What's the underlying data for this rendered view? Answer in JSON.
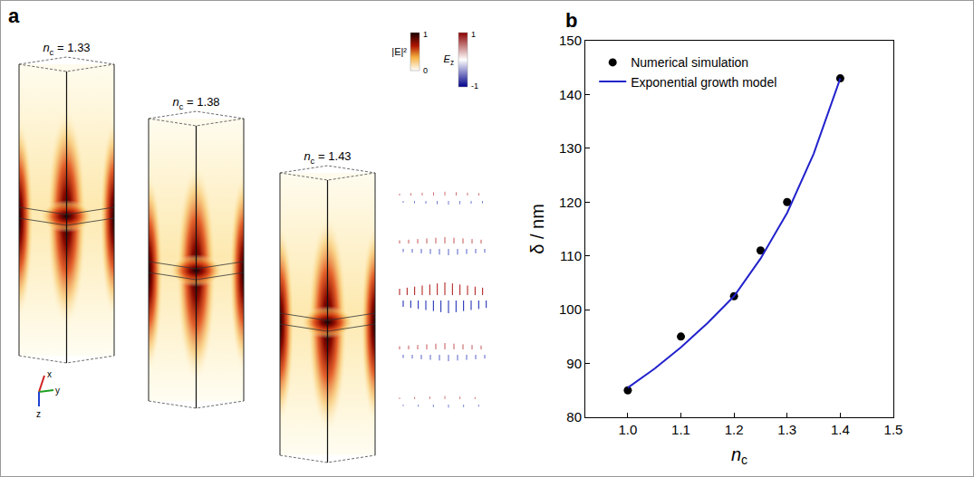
{
  "panel_a": {
    "letter": "a",
    "boxes": [
      {
        "symbol": "n",
        "subscript": "c",
        "value": 1.33
      },
      {
        "symbol": "n",
        "subscript": "c",
        "value": 1.38
      },
      {
        "symbol": "n",
        "subscript": "c",
        "value": 1.43
      }
    ],
    "colorbars": [
      {
        "label": "|E|²",
        "max": 1,
        "min": 0
      },
      {
        "symbol": "E",
        "subscript": "z",
        "max": 1,
        "min": -1
      }
    ],
    "axes_triad": [
      "x",
      "y",
      "z"
    ]
  },
  "chart_data": {
    "type": "scatter",
    "letter": "b",
    "x_label": {
      "symbol": "n",
      "subscript": "c"
    },
    "y_label": "δ / nm",
    "xlim": [
      0.92,
      1.5
    ],
    "xticks": [
      {
        "value": 1,
        "label": "1.0"
      },
      1.1,
      1.2,
      1.3,
      1.4,
      1.5
    ],
    "ylim": [
      80,
      150
    ],
    "yticks": [
      80,
      90,
      100,
      110,
      120,
      130,
      140,
      150
    ],
    "grid": false,
    "legend": "top left",
    "series": [
      {
        "name": "Numerical simulation",
        "type": "scatter",
        "marker": "circle",
        "color": "#000000",
        "x": [
          1.0,
          1.1,
          1.2,
          1.25,
          1.3,
          1.4
        ],
        "values": [
          85,
          95,
          102.5,
          111,
          120,
          143
        ]
      },
      {
        "name": "Exponential growth model",
        "type": "line",
        "line_style": "solid",
        "color": "#2222cc",
        "x": [
          1.0,
          1.05,
          1.1,
          1.15,
          1.2,
          1.25,
          1.3,
          1.35,
          1.4
        ],
        "values": [
          85.5,
          89,
          93,
          97.5,
          102.5,
          109.5,
          118,
          129,
          143
        ]
      }
    ]
  }
}
